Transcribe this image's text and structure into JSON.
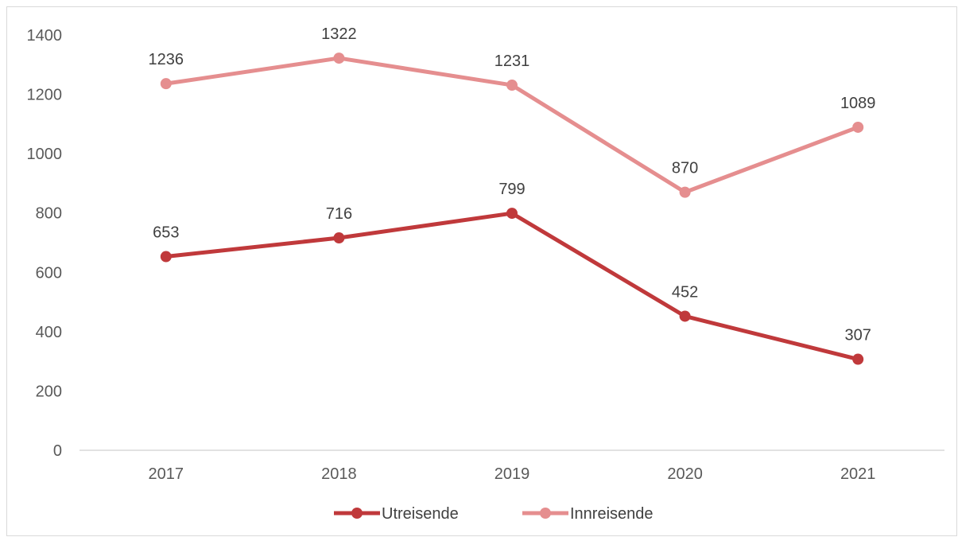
{
  "chart_data": {
    "type": "line",
    "title": "",
    "xlabel": "",
    "ylabel": "",
    "categories": [
      "2017",
      "2018",
      "2019",
      "2020",
      "2021"
    ],
    "series": [
      {
        "name": "Utreisende",
        "values": [
          653,
          716,
          799,
          452,
          307
        ],
        "color": "#c0393b"
      },
      {
        "name": "Innreisende",
        "values": [
          1236,
          1322,
          1231,
          870,
          1089
        ],
        "color": "#e58e8f"
      }
    ],
    "ylim": [
      0,
      1400
    ],
    "yticks": [
      "0",
      "200",
      "400",
      "600",
      "800",
      "1000",
      "1200",
      "1400"
    ],
    "grid": false,
    "legend": "bottom",
    "data_labels": true
  }
}
